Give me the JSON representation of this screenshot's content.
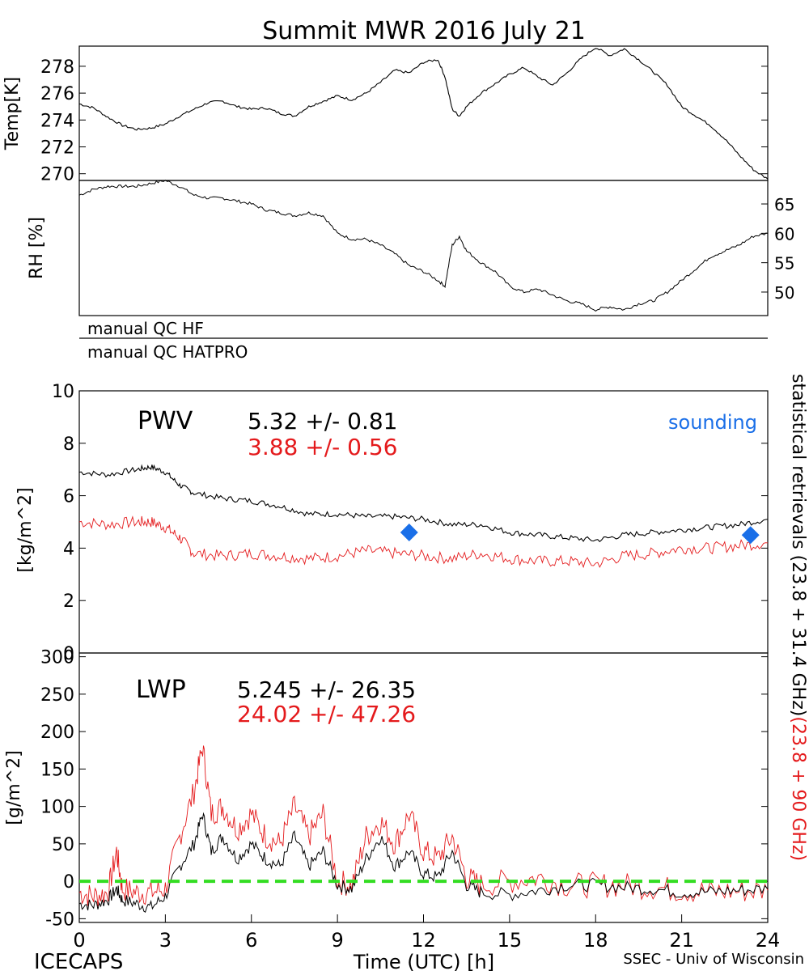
{
  "title": "Summit MWR 2016 July 21",
  "footer": {
    "left": "ICECAPS",
    "right": "SSEC - Univ of Wisconsin"
  },
  "colors": {
    "black": "#000000",
    "red": "#e41a1c",
    "blue": "#1a6fe8",
    "green": "#33dd22"
  },
  "chart_data": [
    {
      "id": "temp",
      "type": "line",
      "ylabel": "Temp[K]",
      "ylim": [
        269.5,
        279.5
      ],
      "xlim": [
        0,
        24
      ],
      "yticks": [
        270,
        272,
        274,
        276,
        278
      ],
      "series": [
        {
          "name": "Temp",
          "color": "#000000",
          "x": [
            0,
            0.5,
            1,
            1.5,
            2,
            2.5,
            3,
            3.5,
            4,
            4.5,
            5,
            5.5,
            6,
            6.5,
            7,
            7.5,
            8,
            8.5,
            9,
            9.5,
            10,
            10.5,
            11,
            11.5,
            12,
            12.5,
            12.75,
            13,
            13.25,
            13.5,
            14,
            14.5,
            15,
            15.5,
            16,
            16.5,
            17,
            17.5,
            18,
            18.5,
            19,
            19.5,
            20,
            20.5,
            21,
            21.5,
            22,
            22.5,
            23,
            23.5,
            24
          ],
          "y": [
            275.2,
            274.9,
            274.2,
            273.6,
            273.3,
            273.4,
            273.7,
            274.3,
            274.8,
            275.3,
            275.4,
            275.0,
            274.8,
            274.9,
            274.5,
            274.3,
            275.0,
            275.4,
            275.8,
            275.5,
            276.0,
            276.8,
            277.7,
            277.5,
            278.3,
            278.5,
            277.2,
            274.8,
            274.3,
            275.0,
            276.0,
            276.7,
            277.4,
            277.9,
            277.2,
            276.6,
            277.5,
            278.6,
            279.4,
            278.8,
            279.3,
            278.5,
            277.6,
            276.6,
            275.0,
            274.3,
            273.6,
            272.6,
            271.4,
            270.3,
            269.6
          ]
        }
      ]
    },
    {
      "id": "rh",
      "type": "line",
      "ylabel": "RH [%]",
      "ylim": [
        46,
        69
      ],
      "xlim": [
        0,
        24
      ],
      "yticks": [
        50,
        55,
        60,
        65
      ],
      "series": [
        {
          "name": "RH",
          "color": "#000000",
          "x": [
            0,
            0.5,
            1,
            1.5,
            2,
            2.5,
            3,
            3.5,
            4,
            4.5,
            5,
            5.5,
            6,
            6.5,
            7,
            7.5,
            8,
            8.5,
            9,
            9.5,
            10,
            10.5,
            11,
            11.5,
            12,
            12.5,
            12.75,
            13,
            13.25,
            13.5,
            14,
            14.5,
            15,
            15.5,
            16,
            16.5,
            17,
            17.5,
            18,
            18.5,
            19,
            19.5,
            20,
            20.5,
            21,
            21.5,
            22,
            22.5,
            23,
            23.5,
            24
          ],
          "y": [
            66.5,
            67.5,
            68.0,
            68.0,
            68.0,
            68.5,
            69.0,
            68.0,
            66.5,
            66.0,
            66.0,
            65.5,
            65.0,
            64.0,
            63.5,
            63.0,
            63.5,
            63.0,
            60.0,
            59.0,
            59.0,
            58.0,
            56.5,
            54.5,
            53.5,
            52.0,
            51.0,
            58.0,
            59.5,
            57.0,
            55.0,
            53.5,
            51.0,
            50.0,
            50.5,
            49.5,
            48.5,
            48.0,
            47.0,
            47.5,
            47.0,
            48.0,
            48.5,
            50.0,
            52.0,
            54.0,
            56.0,
            57.0,
            58.0,
            59.5,
            60.0
          ]
        }
      ]
    },
    {
      "id": "qc",
      "type": "table",
      "rows": [
        "manual QC HF",
        "manual QC HATPRO"
      ]
    },
    {
      "id": "pwv",
      "type": "line",
      "label": "PWV",
      "ylabel": "[kg/m^2]",
      "ylim": [
        0,
        10
      ],
      "xlim": [
        0,
        24
      ],
      "yticks": [
        0,
        2,
        4,
        6,
        8,
        10
      ],
      "stats": [
        {
          "text": "5.32 +/-   0.81",
          "color": "#000000"
        },
        {
          "text": "3.88 +/-   0.56",
          "color": "#e41a1c"
        }
      ],
      "legend": {
        "text": "sounding",
        "color": "#1a6fe8"
      },
      "series": [
        {
          "name": "statistical retrievals (23.8 + 31.4 GHz)",
          "color": "#000000",
          "x": [
            0,
            1,
            2,
            2.5,
            3,
            3.5,
            4,
            5,
            6,
            7,
            8,
            9,
            10,
            11,
            12,
            13,
            14,
            15,
            16,
            17,
            18,
            19,
            20,
            21,
            22,
            23,
            24
          ],
          "y": [
            6.9,
            6.8,
            7.0,
            7.1,
            6.9,
            6.4,
            6.1,
            5.9,
            5.8,
            5.6,
            5.3,
            5.3,
            5.2,
            5.2,
            5.1,
            4.9,
            4.9,
            4.6,
            4.5,
            4.4,
            4.3,
            4.5,
            4.6,
            4.7,
            4.8,
            4.9,
            5.1
          ]
        },
        {
          "name": "(23.8 + 90 GHz)",
          "color": "#e41a1c",
          "x": [
            0,
            1,
            2,
            2.5,
            3,
            3.5,
            4,
            5,
            6,
            7,
            8,
            9,
            10,
            11,
            12,
            13,
            14,
            15,
            16,
            17,
            18,
            19,
            20,
            21,
            22,
            23,
            24
          ],
          "y": [
            5.0,
            4.9,
            5.0,
            5.0,
            4.8,
            4.4,
            3.8,
            3.7,
            3.8,
            3.7,
            3.6,
            3.7,
            3.9,
            3.8,
            3.7,
            3.6,
            3.8,
            3.6,
            3.5,
            3.5,
            3.4,
            3.7,
            3.8,
            4.0,
            4.0,
            4.1,
            4.2
          ]
        },
        {
          "name": "sounding",
          "color": "#1a6fe8",
          "type": "scatter",
          "x": [
            11.5,
            23.4
          ],
          "y": [
            4.6,
            4.5
          ]
        }
      ]
    },
    {
      "id": "lwp",
      "type": "line",
      "label": "LWP",
      "ylabel": "[g/m^2]",
      "xlabel": "Time (UTC) [h]",
      "ylim": [
        -55,
        305
      ],
      "xlim": [
        0,
        24
      ],
      "xticks": [
        0,
        3,
        6,
        9,
        12,
        15,
        18,
        21,
        24
      ],
      "yticks": [
        -50,
        0,
        50,
        100,
        150,
        200,
        250,
        300
      ],
      "stats": [
        {
          "text": "5.245 +/-   26.35",
          "color": "#000000"
        },
        {
          "text": "24.02 +/-   47.26",
          "color": "#e41a1c"
        }
      ],
      "series": [
        {
          "name": "statistical retrievals (23.8 + 31.4 GHz)",
          "color": "#000000",
          "x": [
            0,
            0.5,
            1,
            1.3,
            1.5,
            2,
            2.5,
            3,
            3.5,
            4,
            4.3,
            4.6,
            5,
            5.5,
            6,
            6.5,
            7,
            7.5,
            8,
            8.5,
            9,
            9.5,
            10,
            10.5,
            11,
            11.5,
            12,
            12.5,
            13,
            13.5,
            14,
            15,
            16,
            17,
            18,
            19,
            20,
            21,
            22,
            23,
            24
          ],
          "y": [
            -30,
            -32,
            -25,
            -10,
            -25,
            -30,
            -35,
            -20,
            20,
            50,
            90,
            40,
            60,
            30,
            50,
            30,
            20,
            60,
            20,
            40,
            -5,
            -10,
            30,
            60,
            20,
            40,
            10,
            5,
            40,
            -5,
            -15,
            -18,
            -12,
            -5,
            -5,
            -8,
            -10,
            -15,
            -14,
            -12,
            -10
          ]
        },
        {
          "name": "(23.8 + 90 GHz)",
          "color": "#e41a1c",
          "x": [
            0,
            0.5,
            1,
            1.3,
            1.5,
            2,
            2.5,
            3,
            3.5,
            4,
            4.3,
            4.6,
            5,
            5.5,
            6,
            6.5,
            7,
            7.5,
            8,
            8.5,
            9,
            9.5,
            10,
            10.5,
            11,
            11.5,
            12,
            12.5,
            13,
            13.5,
            14,
            15,
            16,
            17,
            18,
            19,
            20,
            21,
            22,
            23,
            24
          ],
          "y": [
            -15,
            -20,
            -15,
            40,
            -10,
            -15,
            -15,
            -10,
            60,
            120,
            180,
            90,
            100,
            70,
            90,
            60,
            50,
            100,
            60,
            90,
            0,
            -5,
            60,
            80,
            50,
            90,
            40,
            30,
            60,
            5,
            -5,
            0,
            5,
            -5,
            -5,
            -5,
            -8,
            -12,
            -14,
            -13,
            -12
          ]
        },
        {
          "name": "zero",
          "color": "#33dd22",
          "type": "dashed",
          "x": [
            0,
            24
          ],
          "y": [
            0,
            0
          ]
        }
      ]
    }
  ],
  "side_label": {
    "black": "statistical retrievals (23.8 + 31.4 GHz)",
    "red": "(23.8 + 90 GHz)"
  }
}
